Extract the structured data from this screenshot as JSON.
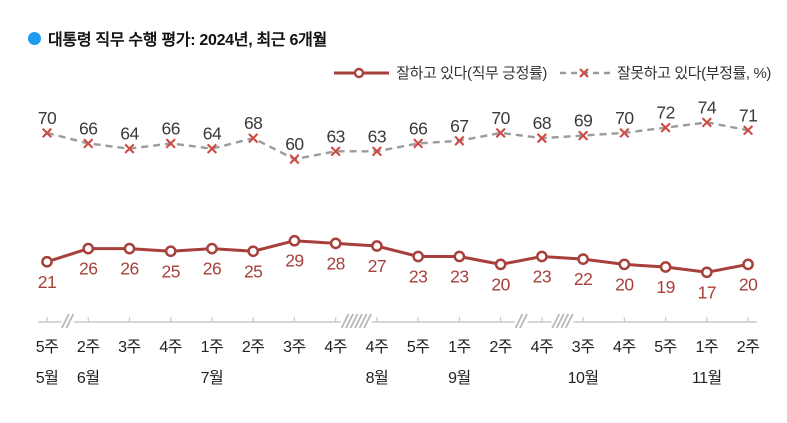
{
  "title": {
    "text": "대통령 직무 수행 평가: 2024년, 최근 6개월"
  },
  "legend": {
    "positive_label": "잘하고 있다(직무 긍정률)",
    "negative_label": "잘못하고 있다(부정률, %)"
  },
  "colors": {
    "title_bullet": "#1d9bf0",
    "positive": "#a7403a",
    "positive_label_text": "#a7403a",
    "negative_line": "#9b9b9b",
    "negative_marker": "#cd4b44",
    "negative_label_text": "#3a3a3a",
    "axis": "#c9c9c9",
    "axis_break": "#b5b5b5",
    "axis_text": "#222222"
  },
  "chart_data": {
    "type": "line",
    "title": "대통령 직무 수행 평가: 2024년, 최근 6개월",
    "categories": [
      "5주",
      "2주",
      "3주",
      "4주",
      "1주",
      "2주",
      "3주",
      "4주",
      "4주",
      "5주",
      "1주",
      "2주",
      "4주",
      "3주",
      "4주",
      "5주",
      "1주",
      "2주"
    ],
    "month_labels": [
      {
        "label": "5월",
        "index": 0
      },
      {
        "label": "6월",
        "index": 1
      },
      {
        "label": "7월",
        "index": 4
      },
      {
        "label": "8월",
        "index": 8
      },
      {
        "label": "9월",
        "index": 10
      },
      {
        "label": "10월",
        "index": 13
      },
      {
        "label": "11월",
        "index": 16
      }
    ],
    "series": [
      {
        "name": "잘하고 있다(직무 긍정률)",
        "marker": "circle",
        "values": [
          21,
          26,
          26,
          25,
          26,
          25,
          29,
          28,
          27,
          23,
          23,
          20,
          23,
          22,
          20,
          19,
          17,
          20
        ]
      },
      {
        "name": "잘못하고 있다(부정률, %)",
        "marker": "x",
        "values": [
          70,
          66,
          64,
          66,
          64,
          68,
          60,
          63,
          63,
          66,
          67,
          70,
          68,
          69,
          70,
          72,
          74,
          71
        ]
      }
    ],
    "axis_breaks": [
      {
        "between": [
          0,
          1
        ],
        "slashes": 2
      },
      {
        "between": [
          7,
          8
        ],
        "slashes": 6
      },
      {
        "between": [
          11,
          12
        ],
        "slashes": 2
      },
      {
        "between": [
          12,
          13
        ],
        "slashes": 4
      }
    ],
    "ylim": [
      0,
      100
    ],
    "grid": false,
    "legend_position": "top-right"
  }
}
